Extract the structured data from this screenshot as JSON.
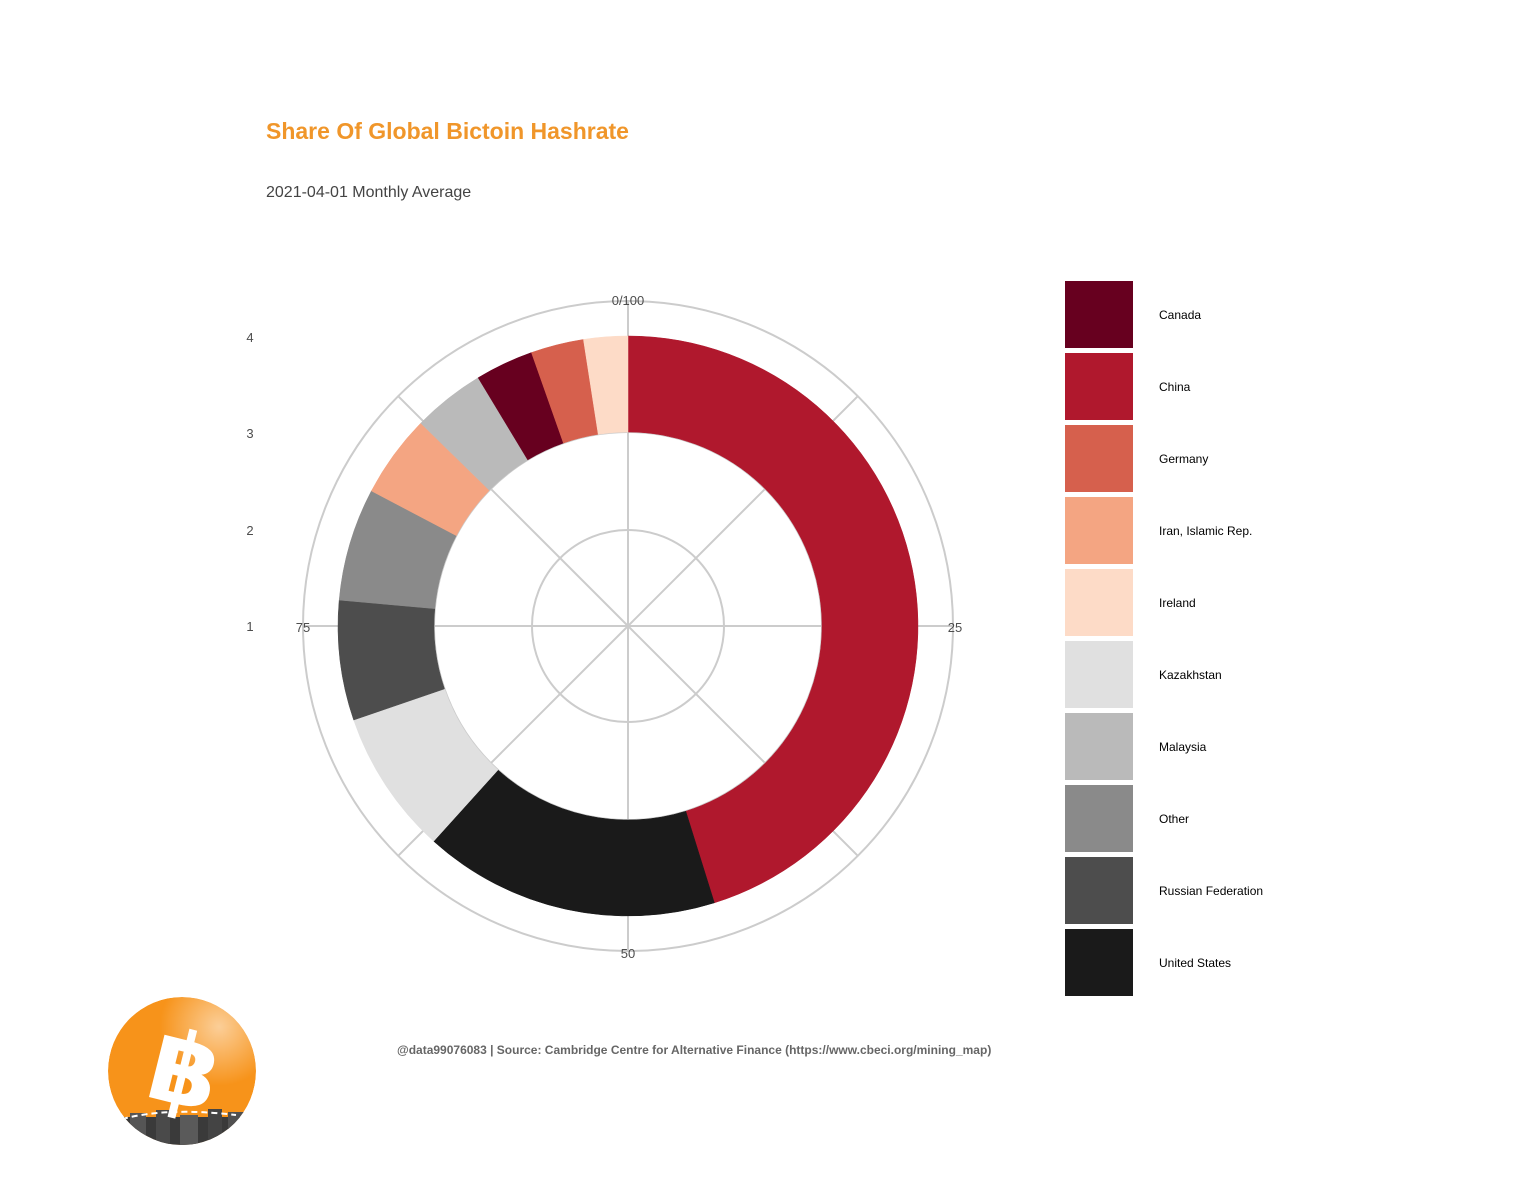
{
  "title": "Share Of Global Bictoin Hashrate",
  "subtitle": "2021-04-01 Monthly Average",
  "caption": "@data99076083 | Source: Cambridge Centre for Alternative Finance (https://www.cbeci.org/mining_map)",
  "chart_data": {
    "type": "pie",
    "coord": "polar",
    "title": "Share Of Global Bictoin Hashrate",
    "subtitle": "2021-04-01 Monthly Average",
    "angle_ticks": [
      {
        "value": 0,
        "label": "0/100"
      },
      {
        "value": 25,
        "label": "25"
      },
      {
        "value": 50,
        "label": "50"
      },
      {
        "value": 75,
        "label": "75"
      }
    ],
    "radial_ticks": [
      "1",
      "2",
      "3",
      "4"
    ],
    "slices": [
      {
        "name": "China",
        "value": 46.0,
        "color": "#b0182d"
      },
      {
        "name": "United States",
        "value": 16.8,
        "color": "#1a1a1a"
      },
      {
        "name": "Kazakhstan",
        "value": 8.2,
        "color": "#e0e0e0"
      },
      {
        "name": "Russian Federation",
        "value": 6.8,
        "color": "#4d4d4d"
      },
      {
        "name": "Other",
        "value": 6.4,
        "color": "#8a8a8a"
      },
      {
        "name": "Iran, Islamic Rep.",
        "value": 4.7,
        "color": "#f4a582"
      },
      {
        "name": "Malaysia",
        "value": 4.1,
        "color": "#bababa"
      },
      {
        "name": "Canada",
        "value": 3.3,
        "color": "#67001f"
      },
      {
        "name": "Germany",
        "value": 3.0,
        "color": "#d6604d"
      },
      {
        "name": "Ireland",
        "value": 2.5,
        "color": "#fddbc7"
      }
    ],
    "legend": {
      "position": "right",
      "entries": [
        {
          "label": "Canada",
          "color": "#67001f"
        },
        {
          "label": "China",
          "color": "#b0182d"
        },
        {
          "label": "Germany",
          "color": "#d6604d"
        },
        {
          "label": "Iran, Islamic Rep.",
          "color": "#f4a582"
        },
        {
          "label": "Ireland",
          "color": "#fddbc7"
        },
        {
          "label": "Kazakhstan",
          "color": "#e0e0e0"
        },
        {
          "label": "Malaysia",
          "color": "#bababa"
        },
        {
          "label": "Other",
          "color": "#8a8a8a"
        },
        {
          "label": "Russian Federation",
          "color": "#4d4d4d"
        },
        {
          "label": "United States",
          "color": "#1a1a1a"
        }
      ]
    },
    "grid": true
  },
  "colors": {
    "title": "#f0962a",
    "grid": "#cccccc",
    "logo": "#f7931a"
  },
  "logo": {
    "icon": "bitcoin-logo-icon"
  }
}
